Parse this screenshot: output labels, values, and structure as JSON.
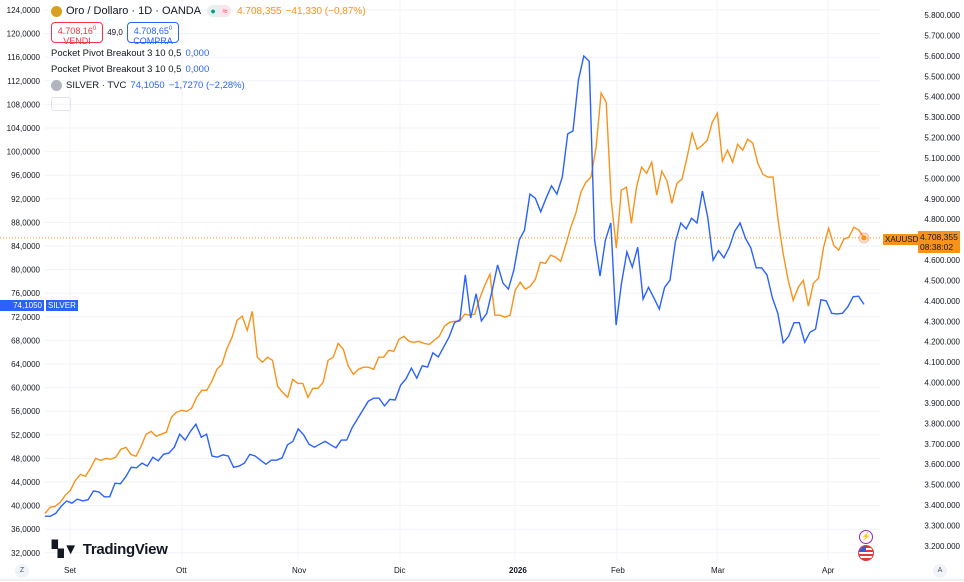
{
  "header": {
    "symbol_title": "Oro / Dollaro · 1D · OANDA",
    "status_icons": [
      "market-open-dot",
      "delayed-icon"
    ],
    "last_price": "4.708,355",
    "change": "−41,330 (−0,87%)"
  },
  "trade": {
    "sell_price": "4.708,16",
    "sell_sup": "0",
    "sell_label": "VENDI",
    "spread": "49,0",
    "buy_price": "4.708,65",
    "buy_sup": "0",
    "buy_label": "COMPRA"
  },
  "indicators": [
    {
      "name": "Pocket Pivot Breakout 3 10 0,5",
      "value": "0,000"
    },
    {
      "name": "Pocket Pivot Breakout 3 10 0,5",
      "value": "0,000"
    }
  ],
  "compare": {
    "name": "SILVER · TVC",
    "value": "74,1050",
    "change": "−1,7270 (−2,28%)"
  },
  "price_labels": {
    "xau_tag": "XAUUSD",
    "xau_price": "4.708,355",
    "xau_countdown": "08:38:02",
    "silver_price": "74,1050",
    "silver_tag": "SILVER"
  },
  "time_axis": {
    "labels": [
      "Set",
      "Ott",
      "Nov",
      "Dic",
      "2026",
      "Feb",
      "Mar",
      "Apr"
    ],
    "left_button": "Z",
    "right_button": "A"
  },
  "watermark": "TradingView",
  "colors": {
    "gold": "#f7931a",
    "silver": "#2962ff",
    "grid": "#f0f3fa"
  },
  "chart_data": {
    "type": "line",
    "left_axis": {
      "ticks": [
        "124,0000",
        "120,0000",
        "116,0000",
        "112,0000",
        "108,0000",
        "104,0000",
        "100,0000",
        "96,0000",
        "92,0000",
        "88,0000",
        "84,0000",
        "80,0000",
        "76,0000",
        "72,0000",
        "68,0000",
        "64,0000",
        "60,0000",
        "56,0000",
        "52,0000",
        "48,0000",
        "44,0000",
        "40,0000",
        "36,0000",
        "32,0000"
      ],
      "range": [
        32,
        124
      ]
    },
    "right_axis": {
      "ticks": [
        "5.800.000",
        "5.700.000",
        "5.600.000",
        "5.500.000",
        "5.400.000",
        "5.300.000",
        "5.200.000",
        "5.100.000",
        "5.000.000",
        "4.900.000",
        "4.800.000",
        "4.700.000",
        "4.600.000",
        "4.500.000",
        "4.400.000",
        "4.300.000",
        "4.200.000",
        "4.100.000",
        "4.000.000",
        "3.900.000",
        "3.800.000",
        "3.700.000",
        "3.600.000",
        "3.500.000",
        "3.400.000",
        "3.300.000",
        "3.200.000"
      ],
      "range_thousands": [
        3200,
        5800
      ]
    },
    "series": [
      {
        "name": "XAUUSD (thousands)",
        "axis": "right",
        "values": [
          3359,
          3389,
          3394,
          3413,
          3448,
          3472,
          3521,
          3550,
          3541,
          3580,
          3629,
          3619,
          3629,
          3624,
          3634,
          3673,
          3683,
          3648,
          3639,
          3688,
          3747,
          3761,
          3737,
          3747,
          3757,
          3830,
          3855,
          3864,
          3859,
          3874,
          3928,
          3962,
          3962,
          4006,
          4065,
          4089,
          4168,
          4222,
          4305,
          4325,
          4256,
          4349,
          4124,
          4099,
          4124,
          4109,
          3982,
          3952,
          3928,
          4016,
          3996,
          3996,
          3928,
          3972,
          3972,
          4001,
          4109,
          4124,
          4192,
          4163,
          4080,
          4040,
          4065,
          4075,
          4075,
          4065,
          4124,
          4124,
          4158,
          4153,
          4212,
          4227,
          4202,
          4197,
          4202,
          4192,
          4187,
          4207,
          4227,
          4276,
          4295,
          4300,
          4300,
          4335,
          4330,
          4335,
          4413,
          4477,
          4530,
          4330,
          4330,
          4320,
          4330,
          4452,
          4491,
          4457,
          4472,
          4506,
          4589,
          4584,
          4624,
          4614,
          4594,
          4673,
          4761,
          4829,
          4932,
          4981,
          5006,
          5153,
          5417,
          5373,
          4893,
          4658,
          4942,
          4957,
          4780,
          4957,
          5055,
          5025,
          5079,
          4918,
          5035,
          4991,
          4878,
          4976,
          4996,
          5104,
          5221,
          5143,
          5162,
          5187,
          5275,
          5319,
          5084,
          5138,
          5079,
          5167,
          5138,
          5192,
          5172,
          5074,
          5020,
          5006,
          5006,
          4795,
          4633,
          4501,
          4403,
          4467,
          4501,
          4374,
          4486,
          4511,
          4663,
          4756,
          4673,
          4648,
          4702,
          4712,
          4761,
          4746,
          4708.355
        ]
      },
      {
        "name": "SILVER",
        "axis": "left",
        "values": [
          38.2,
          38.2,
          38.7,
          39.9,
          40.8,
          40.4,
          41.1,
          40.8,
          41.0,
          42.5,
          42.3,
          41.5,
          41.5,
          43.8,
          43.7,
          44.9,
          46.5,
          46.4,
          47.2,
          46.7,
          48.2,
          47.6,
          48.7,
          48.9,
          49.9,
          52.1,
          51.1,
          52.6,
          53.8,
          51.6,
          52.1,
          48.4,
          48.2,
          48.6,
          48.4,
          46.5,
          46.7,
          47.2,
          48.7,
          48.4,
          47.7,
          47.0,
          47.7,
          47.7,
          48.1,
          50.3,
          50.9,
          53.0,
          52.0,
          50.4,
          49.9,
          50.4,
          50.9,
          50.3,
          49.8,
          51.1,
          51.1,
          53.2,
          54.7,
          56.2,
          57.7,
          58.2,
          58.2,
          56.9,
          58.0,
          57.9,
          60.4,
          61.5,
          63.3,
          61.6,
          63.7,
          63.5,
          65.9,
          65.2,
          66.9,
          68.6,
          71.0,
          71.5,
          79.1,
          71.8,
          75.9,
          71.3,
          72.6,
          76.5,
          80.8,
          77.7,
          76.7,
          79.9,
          85.0,
          86.7,
          92.8,
          92.1,
          89.8,
          92.1,
          94.2,
          92.8,
          95.7,
          103.0,
          103.5,
          112.1,
          116.2,
          115.3,
          85.0,
          78.9,
          85.0,
          87.9,
          70.6,
          77.7,
          83.0,
          80.4,
          83.8,
          75.0,
          77.0,
          75.2,
          73.3,
          77.0,
          78.2,
          84.7,
          87.9,
          86.9,
          88.7,
          87.9,
          93.3,
          88.9,
          81.6,
          83.2,
          82.0,
          83.8,
          86.5,
          87.9,
          85.3,
          83.7,
          80.3,
          80.3,
          79.1,
          75.2,
          72.6,
          67.6,
          68.7,
          71.0,
          71.0,
          67.7,
          69.4,
          69.9,
          74.9,
          74.7,
          72.6,
          72.5,
          72.6,
          73.7,
          75.4,
          75.5,
          74.105
        ]
      }
    ],
    "current_price_line_thousands": 4708.355,
    "grid": true
  }
}
